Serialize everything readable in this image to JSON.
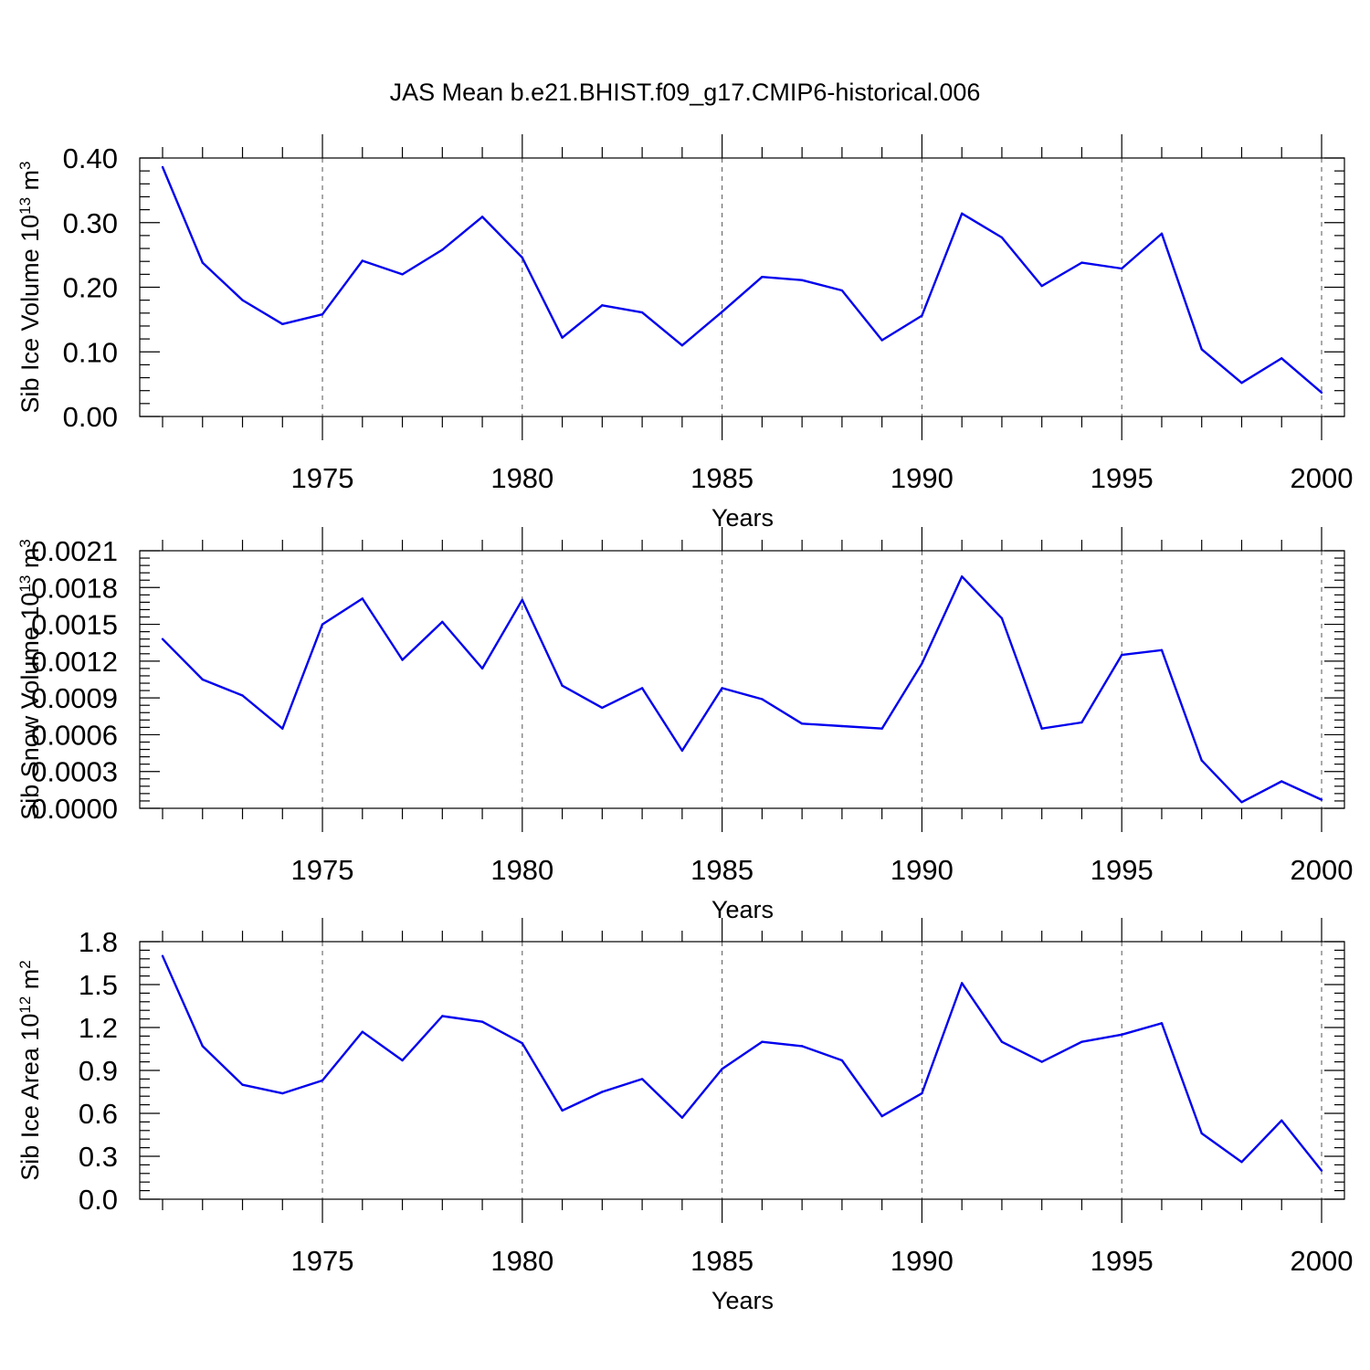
{
  "title": "JAS Mean b.e21.BHIST.f09_g17.CMIP6-historical.006",
  "colors": {
    "series": "#0000ee",
    "axes": "#000000",
    "grid": "#555555"
  },
  "chart_data": [
    {
      "type": "line",
      "title": "JAS Mean b.e21.BHIST.f09_g17.CMIP6-historical.006",
      "xlabel": "Years",
      "ylabel": "Sib Ice Volume 10",
      "ylabel_sup": "13",
      "ylabel_unit": " m",
      "ylabel_unit_sup": "3",
      "xlim": [
        1971,
        2000
      ],
      "ylim": [
        0,
        0.4
      ],
      "xticks": [
        1975,
        1980,
        1985,
        1990,
        1995,
        2000
      ],
      "yticks": [
        "0.00",
        "0.10",
        "0.20",
        "0.30",
        "0.40"
      ],
      "grid": "x-dashed",
      "x": [
        1971,
        1972,
        1973,
        1974,
        1975,
        1976,
        1977,
        1978,
        1979,
        1980,
        1981,
        1982,
        1983,
        1984,
        1985,
        1986,
        1987,
        1988,
        1989,
        1990,
        1991,
        1992,
        1993,
        1994,
        1995,
        1996,
        1997,
        1998,
        1999,
        2000
      ],
      "series": [
        {
          "values": [
            0.386,
            0.238,
            0.18,
            0.143,
            0.158,
            0.241,
            0.22,
            0.258,
            0.309,
            0.246,
            0.122,
            0.172,
            0.161,
            0.11,
            0.162,
            0.216,
            0.211,
            0.195,
            0.118,
            0.156,
            0.314,
            0.277,
            0.202,
            0.238,
            0.229,
            0.283,
            0.104,
            0.052,
            0.09,
            0.037
          ]
        }
      ]
    },
    {
      "type": "line",
      "xlabel": "Years",
      "ylabel": "Sib Snow Volume 10",
      "ylabel_sup": "13",
      "ylabel_unit": " m",
      "ylabel_unit_sup": "3",
      "xlim": [
        1971,
        2000
      ],
      "ylim": [
        0,
        0.0021
      ],
      "xticks": [
        1975,
        1980,
        1985,
        1990,
        1995,
        2000
      ],
      "yticks": [
        "0.0000",
        "0.0003",
        "0.0006",
        "0.0009",
        "0.0012",
        "0.0015",
        "0.0018",
        "0.0021"
      ],
      "grid": "x-dashed",
      "x": [
        1971,
        1972,
        1973,
        1974,
        1975,
        1976,
        1977,
        1978,
        1979,
        1980,
        1981,
        1982,
        1983,
        1984,
        1985,
        1986,
        1987,
        1988,
        1989,
        1990,
        1991,
        1992,
        1993,
        1994,
        1995,
        1996,
        1997,
        1998,
        1999,
        2000
      ],
      "series": [
        {
          "values": [
            0.00138,
            0.00105,
            0.00092,
            0.00065,
            0.0015,
            0.00171,
            0.00121,
            0.00152,
            0.00114,
            0.0017,
            0.001,
            0.00082,
            0.00098,
            0.00047,
            0.00098,
            0.00089,
            0.00069,
            0.00067,
            0.00065,
            0.00118,
            0.00189,
            0.00155,
            0.00065,
            0.0007,
            0.00125,
            0.00129,
            0.00039,
            5e-05,
            0.00022,
            7e-05
          ]
        }
      ]
    },
    {
      "type": "line",
      "xlabel": "Years",
      "ylabel": "Sib Ice Area 10",
      "ylabel_sup": "12",
      "ylabel_unit": " m",
      "ylabel_unit_sup": "2",
      "xlim": [
        1971,
        2000
      ],
      "ylim": [
        0,
        1.8
      ],
      "xticks": [
        1975,
        1980,
        1985,
        1990,
        1995,
        2000
      ],
      "yticks": [
        "0.0",
        "0.3",
        "0.6",
        "0.9",
        "1.2",
        "1.5",
        "1.8"
      ],
      "grid": "x-dashed",
      "x": [
        1971,
        1972,
        1973,
        1974,
        1975,
        1976,
        1977,
        1978,
        1979,
        1980,
        1981,
        1982,
        1983,
        1984,
        1985,
        1986,
        1987,
        1988,
        1989,
        1990,
        1991,
        1992,
        1993,
        1994,
        1995,
        1996,
        1997,
        1998,
        1999,
        2000
      ],
      "series": [
        {
          "values": [
            1.7,
            1.07,
            0.8,
            0.74,
            0.83,
            1.17,
            0.97,
            1.28,
            1.24,
            1.09,
            0.62,
            0.75,
            0.84,
            0.57,
            0.91,
            1.1,
            1.07,
            0.97,
            0.58,
            0.74,
            1.51,
            1.1,
            0.96,
            1.1,
            1.15,
            1.23,
            0.46,
            0.26,
            0.55,
            0.2
          ]
        }
      ]
    }
  ]
}
